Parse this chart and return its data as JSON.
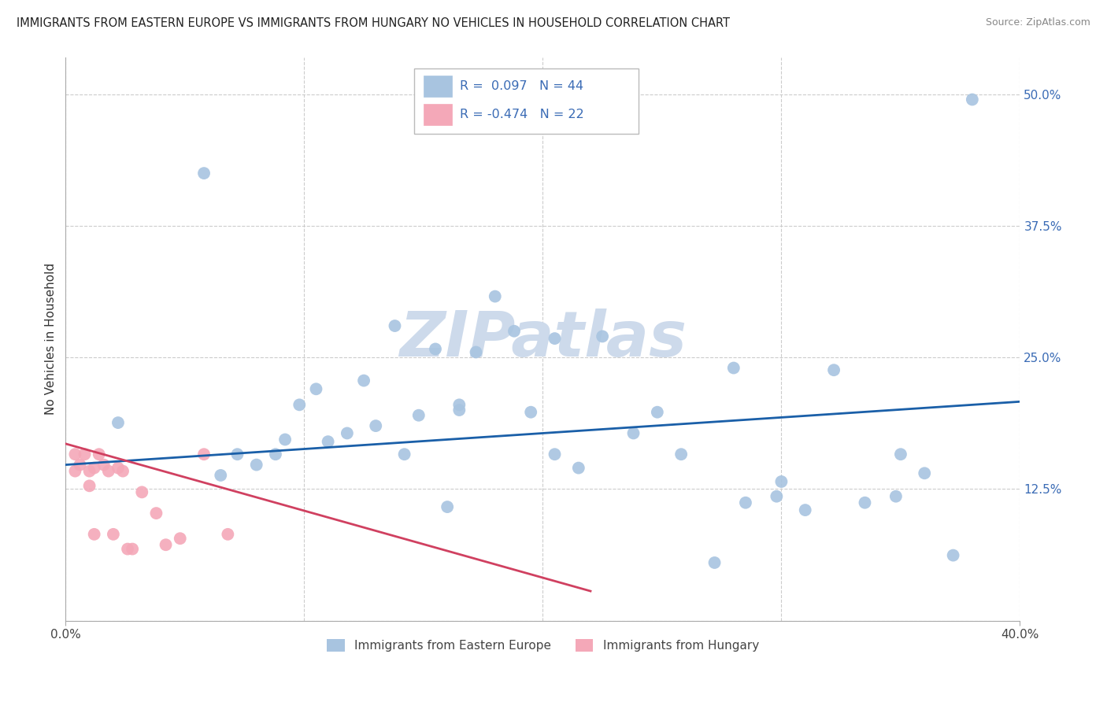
{
  "title": "IMMIGRANTS FROM EASTERN EUROPE VS IMMIGRANTS FROM HUNGARY NO VEHICLES IN HOUSEHOLD CORRELATION CHART",
  "source": "Source: ZipAtlas.com",
  "ylabel": "No Vehicles in Household",
  "legend_label1": "Immigrants from Eastern Europe",
  "legend_label2": "Immigrants from Hungary",
  "r1": 0.097,
  "n1": 44,
  "r2": -0.474,
  "n2": 22,
  "color_blue": "#a8c4e0",
  "color_pink": "#f4a8b8",
  "line_color_blue": "#1a5fa8",
  "line_color_pink": "#d04060",
  "background_color": "#ffffff",
  "grid_color": "#cccccc",
  "watermark_color": "#cddaeb",
  "xlim": [
    0.0,
    0.4
  ],
  "ylim": [
    0.0,
    0.535
  ],
  "blue_scatter_x": [
    0.022,
    0.058,
    0.065,
    0.072,
    0.08,
    0.088,
    0.092,
    0.098,
    0.105,
    0.11,
    0.118,
    0.125,
    0.13,
    0.138,
    0.142,
    0.148,
    0.155,
    0.16,
    0.165,
    0.172,
    0.18,
    0.188,
    0.195,
    0.205,
    0.215,
    0.225,
    0.238,
    0.248,
    0.258,
    0.272,
    0.285,
    0.298,
    0.31,
    0.322,
    0.335,
    0.348,
    0.36,
    0.372,
    0.205,
    0.165,
    0.3,
    0.28,
    0.35,
    0.38
  ],
  "blue_scatter_y": [
    0.188,
    0.425,
    0.138,
    0.158,
    0.148,
    0.158,
    0.172,
    0.205,
    0.22,
    0.17,
    0.178,
    0.228,
    0.185,
    0.28,
    0.158,
    0.195,
    0.258,
    0.108,
    0.2,
    0.255,
    0.308,
    0.275,
    0.198,
    0.268,
    0.145,
    0.27,
    0.178,
    0.198,
    0.158,
    0.055,
    0.112,
    0.118,
    0.105,
    0.238,
    0.112,
    0.118,
    0.14,
    0.062,
    0.158,
    0.205,
    0.132,
    0.24,
    0.158,
    0.495
  ],
  "pink_scatter_x": [
    0.004,
    0.004,
    0.006,
    0.008,
    0.01,
    0.01,
    0.012,
    0.012,
    0.014,
    0.016,
    0.018,
    0.02,
    0.022,
    0.024,
    0.026,
    0.028,
    0.032,
    0.038,
    0.042,
    0.048,
    0.058,
    0.068
  ],
  "pink_scatter_y": [
    0.158,
    0.142,
    0.148,
    0.158,
    0.142,
    0.128,
    0.082,
    0.145,
    0.158,
    0.148,
    0.142,
    0.082,
    0.145,
    0.142,
    0.068,
    0.068,
    0.122,
    0.102,
    0.072,
    0.078,
    0.158,
    0.082
  ],
  "blue_line_x": [
    0.0,
    0.4
  ],
  "blue_line_y": [
    0.148,
    0.208
  ],
  "pink_line_x": [
    0.0,
    0.22
  ],
  "pink_line_y": [
    0.168,
    0.028
  ]
}
